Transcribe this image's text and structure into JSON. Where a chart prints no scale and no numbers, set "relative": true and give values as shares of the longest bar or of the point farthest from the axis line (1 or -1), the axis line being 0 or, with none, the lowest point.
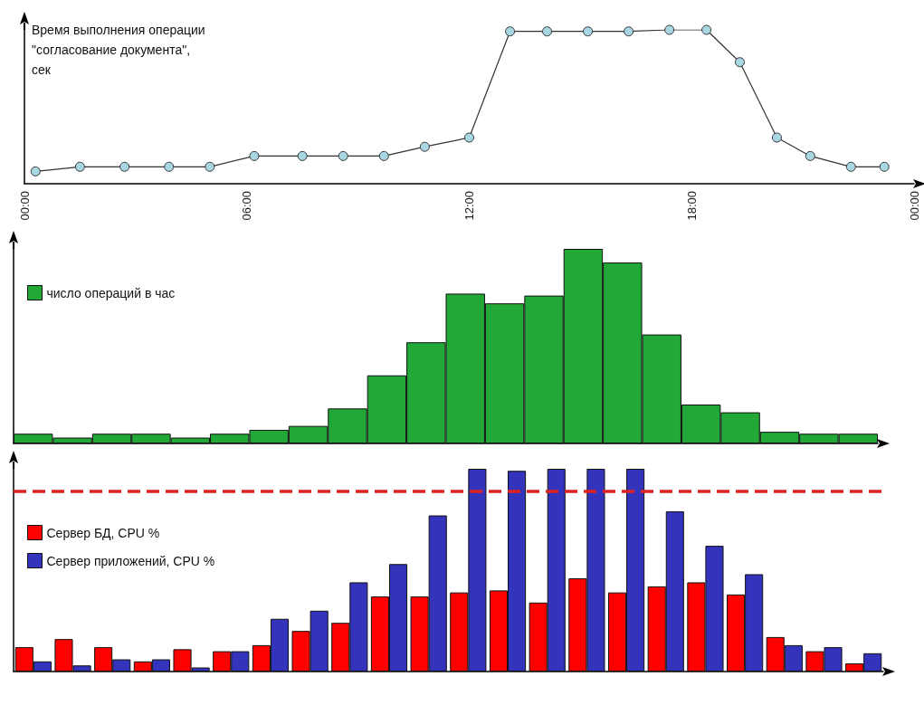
{
  "chart_data": [
    {
      "type": "line",
      "ylabel": "Время выполнения операции \"согласование документа\", сек",
      "relative": true,
      "xlim": [
        0,
        24
      ],
      "xticks": [
        {
          "value": 0,
          "label": "00:00"
        },
        {
          "value": 6,
          "label": "06:00"
        },
        {
          "value": 12,
          "label": "12:00"
        },
        {
          "value": 18,
          "label": "18:00"
        },
        {
          "value": 24,
          "label": "00:00"
        }
      ],
      "tick_labels": "x",
      "grid": false,
      "legend": false,
      "marker": "circle",
      "series": [
        {
          "color": "#333333",
          "x": [
            0.3,
            1.5,
            2.7,
            3.9,
            5.0,
            6.2,
            7.5,
            8.6,
            9.7,
            10.8,
            12.0,
            13.1,
            14.1,
            15.2,
            16.3,
            17.4,
            18.4,
            19.3,
            20.3,
            21.2,
            22.3,
            23.2
          ],
          "values": [
            0.08,
            0.11,
            0.11,
            0.11,
            0.11,
            0.18,
            0.18,
            0.18,
            0.18,
            0.24,
            0.3,
            0.99,
            0.99,
            0.99,
            0.99,
            1,
            1,
            0.79,
            0.3,
            0.18,
            0.11,
            0.11
          ]
        }
      ]
    },
    {
      "type": "bar",
      "relative": true,
      "categories": [
        null,
        null,
        null,
        null,
        null,
        null,
        null,
        null,
        null,
        null,
        null,
        null,
        null,
        null,
        null,
        null,
        null,
        null,
        null,
        null,
        null,
        null
      ],
      "tick_labels": false,
      "grid": false,
      "legend": "top left",
      "series": [
        {
          "name": "число операций в час",
          "color": "#22a836",
          "values": [
            0.05,
            0.03,
            0.05,
            0.05,
            0.03,
            0.05,
            0.07,
            0.09,
            0.18,
            0.35,
            0.52,
            0.77,
            0.72,
            0.76,
            1,
            0.93,
            0.56,
            0.2,
            0.16,
            0.06,
            0.05,
            0.05
          ]
        }
      ]
    },
    {
      "type": "bar",
      "relative": true,
      "categories": [
        null,
        null,
        null,
        null,
        null,
        null,
        null,
        null,
        null,
        null,
        null,
        null,
        null,
        null,
        null,
        null,
        null,
        null,
        null,
        null,
        null,
        null
      ],
      "tick_labels": false,
      "grid": false,
      "legend": "top left",
      "ref_lines": [
        {
          "axis": "y",
          "value": 0.89,
          "color": "#dd2222",
          "line_style": "dashed"
        }
      ],
      "series": [
        {
          "name": "Сервер БД, CPU %",
          "color": "#ff0000",
          "values": [
            0.12,
            0.16,
            0.12,
            0.05,
            0.11,
            0.1,
            0.13,
            0.2,
            0.24,
            0.37,
            0.37,
            0.39,
            0.4,
            0.34,
            0.46,
            0.39,
            0.42,
            0.44,
            0.38,
            0.17,
            0.1,
            0.04
          ]
        },
        {
          "name": "Сервер приложений, CPU %",
          "color": "#3333bb",
          "values": [
            0.05,
            0.03,
            0.06,
            0.06,
            0.02,
            0.1,
            0.26,
            0.3,
            0.44,
            0.53,
            0.77,
            1,
            0.99,
            1,
            1,
            1,
            0.79,
            0.62,
            0.48,
            0.13,
            0.12,
            0.09
          ]
        }
      ]
    }
  ]
}
